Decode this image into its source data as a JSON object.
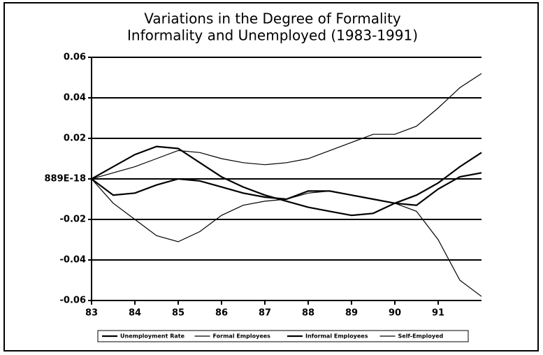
{
  "chart_data": {
    "type": "line",
    "title": "Variations in the Degree of Formality",
    "subtitle": "Informality and Unemployed (1983-1991)",
    "x": [
      83,
      83.5,
      84,
      84.5,
      85,
      85.5,
      86,
      86.5,
      87,
      87.5,
      88,
      88.5,
      89,
      89.5,
      90,
      90.5,
      91,
      91.5,
      92
    ],
    "series": [
      {
        "name": "Unemployment Rate",
        "color": "#000000",
        "values": [
          0,
          -0.008,
          -0.007,
          -0.003,
          0,
          -0.001,
          -0.004,
          -0.007,
          -0.009,
          -0.01,
          -0.006,
          -0.006,
          -0.008,
          -0.01,
          -0.012,
          -0.013,
          -0.005,
          0.001,
          0.003
        ]
      },
      {
        "name": "Formal Employees",
        "color": "#000000",
        "values": [
          0,
          -0.012,
          -0.02,
          -0.028,
          -0.031,
          -0.026,
          -0.018,
          -0.013,
          -0.011,
          -0.01,
          -0.007,
          -0.006,
          -0.008,
          -0.01,
          -0.012,
          -0.016,
          -0.03,
          -0.05,
          -0.058
        ]
      },
      {
        "name": "Informal Employees",
        "color": "#000000",
        "values": [
          0,
          0.006,
          0.012,
          0.016,
          0.015,
          0.008,
          0.001,
          -0.004,
          -0.008,
          -0.011,
          -0.014,
          -0.016,
          -0.018,
          -0.017,
          -0.012,
          -0.008,
          -0.002,
          0.006,
          0.013
        ]
      },
      {
        "name": "Self-Employed",
        "color": "#000000",
        "values": [
          0,
          0.003,
          0.006,
          0.01,
          0.014,
          0.013,
          0.01,
          0.008,
          0.007,
          0.008,
          0.01,
          0.014,
          0.018,
          0.022,
          0.022,
          0.026,
          0.035,
          0.045,
          0.052
        ]
      }
    ],
    "xlim": [
      83,
      92
    ],
    "xticks": [
      83,
      84,
      85,
      86,
      87,
      88,
      89,
      90,
      91
    ],
    "ylim": [
      -0.06,
      0.06
    ],
    "yticks": [
      -0.06,
      -0.04,
      -0.02,
      {
        "value": 0,
        "label": "889E-18"
      },
      0.02,
      0.04,
      0.06
    ],
    "grid": true
  }
}
